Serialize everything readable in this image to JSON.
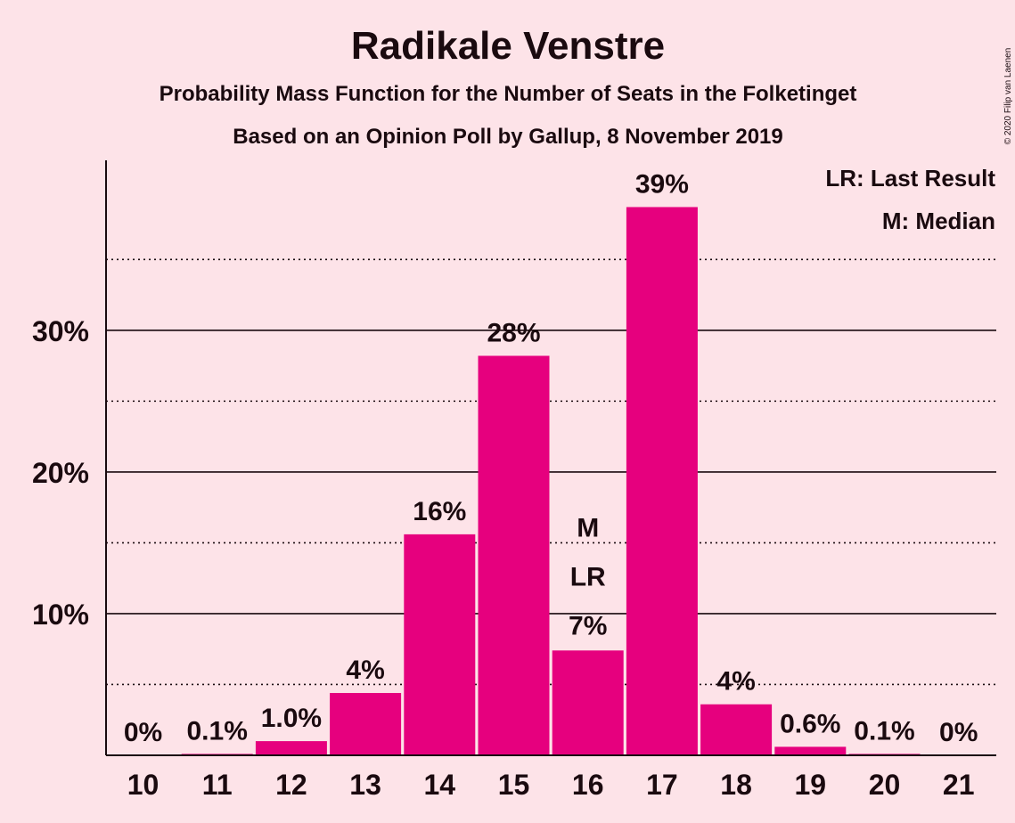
{
  "chart_data": {
    "type": "bar",
    "title": "Radikale Venstre",
    "subtitle": "Probability Mass Function for the Number of Seats in the Folketinget",
    "subtitle2": "Based on an Opinion Poll by Gallup, 8 November 2019",
    "categories": [
      10,
      11,
      12,
      13,
      14,
      15,
      16,
      17,
      18,
      19,
      20,
      21
    ],
    "values": [
      0,
      0.1,
      1.0,
      4.4,
      15.6,
      28.2,
      7.4,
      38.7,
      3.6,
      0.6,
      0.1,
      0
    ],
    "value_labels": [
      "0%",
      "0.1%",
      "1.0%",
      "4%",
      "16%",
      "28%",
      "7%",
      "39%",
      "4%",
      "0.6%",
      "0.1%",
      "0%"
    ],
    "ylim": [
      0,
      42
    ],
    "y_major_ticks": [
      10,
      20,
      30
    ],
    "y_major_tick_labels": [
      "10%",
      "20%",
      "30%"
    ],
    "y_minor_ticks": [
      5,
      15,
      25,
      35
    ],
    "markers": [
      {
        "category": 16,
        "labels": [
          "M",
          "LR"
        ]
      }
    ],
    "legend": [
      "LR: Last Result",
      "M: Median"
    ],
    "legend_position": "top-right",
    "copyright": "© 2020 Filip van Laenen",
    "colors": {
      "background": "#fde3e8",
      "bar": "#e6007e",
      "text": "#1a0a0f"
    }
  }
}
